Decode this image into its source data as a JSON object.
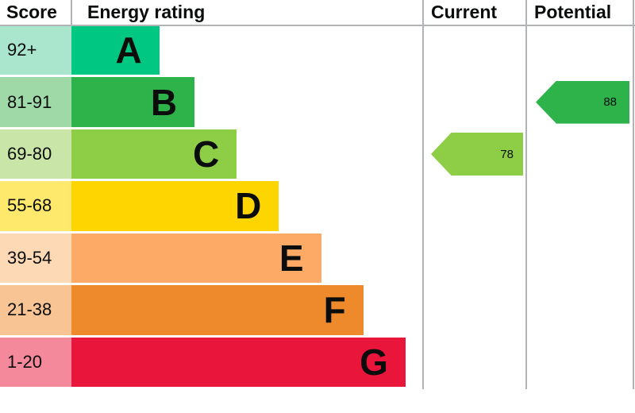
{
  "header": {
    "score": "Score",
    "energy_rating": "Energy rating",
    "current": "Current",
    "potential": "Potential"
  },
  "chart_data": {
    "type": "bar",
    "title": "Energy rating",
    "bands": [
      {
        "range": "92+",
        "letter": "A",
        "color": "#00c781",
        "tint": "#a9e6cd",
        "width_pct": 25
      },
      {
        "range": "81-91",
        "letter": "B",
        "color": "#2eb24a",
        "tint": "#a0d9a8",
        "width_pct": 35
      },
      {
        "range": "69-80",
        "letter": "C",
        "color": "#8dce46",
        "tint": "#c9e5a8",
        "width_pct": 47
      },
      {
        "range": "55-68",
        "letter": "D",
        "color": "#ffd500",
        "tint": "#ffe96d",
        "width_pct": 59
      },
      {
        "range": "39-54",
        "letter": "E",
        "color": "#fcaa65",
        "tint": "#fdd9b6",
        "width_pct": 71
      },
      {
        "range": "21-38",
        "letter": "F",
        "color": "#ef8a2c",
        "tint": "#f8c493",
        "width_pct": 83
      },
      {
        "range": "1-20",
        "letter": "G",
        "color": "#e9153b",
        "tint": "#f5899c",
        "width_pct": 95
      }
    ],
    "current": {
      "value": 78,
      "band": "C",
      "color": "#8dce46",
      "row_index": 2
    },
    "potential": {
      "value": 88,
      "band": "B",
      "color": "#2eb24a",
      "row_index": 1
    }
  },
  "colors": {
    "grid_line": "#b1b4b6",
    "text": "#0b0c0c"
  }
}
